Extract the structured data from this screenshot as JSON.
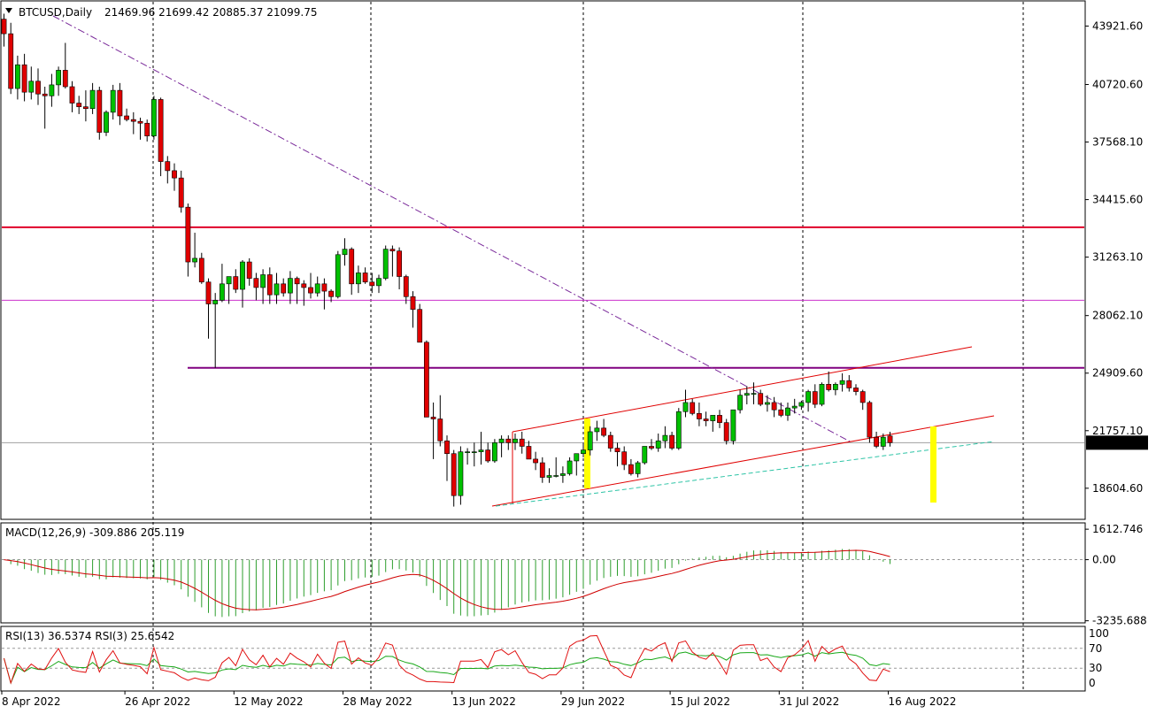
{
  "chart_data": {
    "type": "candlestick",
    "symbol_label": "BTCUSD,Daily",
    "ohlc_label": "21469.96 21699.42 20885.37 21099.75",
    "current_price": "21099.75",
    "price_axis": {
      "min": 16900,
      "max": 45300,
      "ticks": [
        "43921.60",
        "40720.60",
        "37568.10",
        "34415.60",
        "31263.10",
        "28062.10",
        "24909.60",
        "21757.10",
        "18604.60"
      ]
    },
    "date_axis": [
      "8 Apr 2022",
      "26 Apr 2022",
      "12 May 2022",
      "28 May 2022",
      "13 Jun 2022",
      "29 Jun 2022",
      "15 Jul 2022",
      "31 Jul 2022",
      "16 Aug 2022"
    ],
    "date_axis_bar_index": [
      0,
      18,
      34,
      50,
      66,
      82,
      98,
      114,
      130
    ],
    "candles": [
      [
        44300,
        44600,
        42800,
        43500
      ],
      [
        43500,
        44100,
        40200,
        40500
      ],
      [
        40500,
        42300,
        39900,
        41800
      ],
      [
        41800,
        42400,
        39800,
        40300
      ],
      [
        40300,
        41700,
        39900,
        40900
      ],
      [
        40900,
        41600,
        39600,
        40200
      ],
      [
        40200,
        40600,
        38300,
        40100
      ],
      [
        40100,
        41300,
        39500,
        40700
      ],
      [
        40700,
        41700,
        40100,
        41500
      ],
      [
        41500,
        43000,
        40500,
        40600
      ],
      [
        40600,
        40900,
        39200,
        39700
      ],
      [
        39700,
        40100,
        39100,
        39500
      ],
      [
        39500,
        40400,
        38700,
        39400
      ],
      [
        39400,
        40800,
        39100,
        40400
      ],
      [
        40400,
        40600,
        37700,
        38100
      ],
      [
        38100,
        39300,
        37900,
        39200
      ],
      [
        39200,
        40700,
        38800,
        40400
      ],
      [
        40400,
        40800,
        38500,
        39000
      ],
      [
        39000,
        39400,
        38700,
        38800
      ],
      [
        38800,
        39200,
        38000,
        38700
      ],
      [
        38700,
        38900,
        37700,
        38600
      ],
      [
        38600,
        38800,
        37600,
        37900
      ],
      [
        37900,
        40100,
        37700,
        39900
      ],
      [
        39900,
        40000,
        35700,
        36500
      ],
      [
        36500,
        36800,
        35300,
        36000
      ],
      [
        36000,
        36400,
        34900,
        35600
      ],
      [
        35600,
        36000,
        33700,
        34000
      ],
      [
        34000,
        34200,
        30200,
        31000
      ],
      [
        31000,
        32600,
        30700,
        31200
      ],
      [
        31200,
        31500,
        29800,
        29900
      ],
      [
        29900,
        30100,
        26800,
        28700
      ],
      [
        28700,
        29300,
        25200,
        28900
      ],
      [
        28900,
        30900,
        28800,
        29800
      ],
      [
        29800,
        30200,
        28700,
        30200
      ],
      [
        30200,
        30600,
        29300,
        29500
      ],
      [
        29500,
        31100,
        28500,
        31000
      ],
      [
        31000,
        31200,
        29700,
        30100
      ],
      [
        30100,
        30400,
        28900,
        29600
      ],
      [
        29600,
        30600,
        28700,
        30300
      ],
      [
        30300,
        30700,
        28700,
        29200
      ],
      [
        29200,
        30400,
        28700,
        29800
      ],
      [
        29800,
        30100,
        29100,
        29300
      ],
      [
        29300,
        30500,
        28700,
        30100
      ],
      [
        30100,
        30200,
        28700,
        29800
      ],
      [
        29800,
        30000,
        28600,
        29600
      ],
      [
        29600,
        30400,
        29000,
        29300
      ],
      [
        29300,
        30200,
        29100,
        29800
      ],
      [
        29800,
        30100,
        28400,
        29400
      ],
      [
        29400,
        29500,
        28800,
        29100
      ],
      [
        29100,
        31600,
        29000,
        31400
      ],
      [
        31400,
        32300,
        30800,
        31700
      ],
      [
        31700,
        31800,
        29200,
        29800
      ],
      [
        29800,
        30800,
        29300,
        30400
      ],
      [
        30400,
        30700,
        29800,
        29900
      ],
      [
        29900,
        30400,
        29300,
        29700
      ],
      [
        29700,
        30300,
        29300,
        30100
      ],
      [
        30100,
        31900,
        30000,
        31700
      ],
      [
        31700,
        31900,
        30200,
        31600
      ],
      [
        31600,
        31800,
        29500,
        30200
      ],
      [
        30200,
        30300,
        28700,
        29100
      ],
      [
        29100,
        29400,
        27400,
        28400
      ],
      [
        28400,
        28700,
        26700,
        26600
      ],
      [
        26600,
        26700,
        22700,
        22500
      ],
      [
        22500,
        23300,
        20200,
        22400
      ],
      [
        22400,
        23700,
        20900,
        21200
      ],
      [
        21200,
        21500,
        19000,
        20500
      ],
      [
        20500,
        20700,
        17600,
        18200
      ],
      [
        18200,
        20900,
        17700,
        20600
      ],
      [
        20600,
        20800,
        19900,
        20600
      ],
      [
        20600,
        21100,
        19800,
        20600
      ],
      [
        20600,
        21700,
        19900,
        20700
      ],
      [
        20700,
        21100,
        20000,
        20100
      ],
      [
        20100,
        21300,
        20000,
        21100
      ],
      [
        21100,
        21500,
        20300,
        21300
      ],
      [
        21300,
        21500,
        20700,
        21100
      ],
      [
        21100,
        21600,
        20700,
        21300
      ],
      [
        21300,
        21700,
        20500,
        20900
      ],
      [
        20900,
        21200,
        20300,
        20200
      ],
      [
        20200,
        20600,
        19600,
        20000
      ],
      [
        20000,
        20300,
        18900,
        19200
      ],
      [
        19200,
        19700,
        18900,
        19300
      ],
      [
        19300,
        20300,
        19200,
        19300
      ],
      [
        19300,
        19800,
        18900,
        19400
      ],
      [
        19400,
        20300,
        19300,
        20100
      ],
      [
        20100,
        20500,
        19300,
        20500
      ],
      [
        20500,
        21100,
        20300,
        20700
      ],
      [
        20700,
        22000,
        20400,
        21700
      ],
      [
        21700,
        22300,
        21200,
        21900
      ],
      [
        21900,
        22400,
        21400,
        21500
      ],
      [
        21500,
        21700,
        20600,
        20800
      ],
      [
        20800,
        21100,
        19800,
        20600
      ],
      [
        20600,
        20900,
        19600,
        19900
      ],
      [
        19900,
        20200,
        19300,
        19400
      ],
      [
        19400,
        20100,
        19200,
        20000
      ],
      [
        20000,
        20900,
        19900,
        20900
      ],
      [
        20900,
        21300,
        20700,
        20800
      ],
      [
        20800,
        21600,
        20600,
        21200
      ],
      [
        21200,
        22000,
        20800,
        21500
      ],
      [
        21500,
        21700,
        20700,
        20800
      ],
      [
        20800,
        23000,
        20700,
        22800
      ],
      [
        22800,
        24000,
        22500,
        23300
      ],
      [
        23300,
        23500,
        22600,
        22700
      ],
      [
        22700,
        23300,
        22000,
        22400
      ],
      [
        22400,
        22800,
        22000,
        22300
      ],
      [
        22300,
        22500,
        21700,
        22600
      ],
      [
        22600,
        22900,
        21900,
        22200
      ],
      [
        22200,
        22400,
        21000,
        21200
      ],
      [
        21200,
        22900,
        21000,
        22900
      ],
      [
        22900,
        24000,
        22700,
        23700
      ],
      [
        23700,
        24200,
        23200,
        23800
      ],
      [
        23800,
        24400,
        23200,
        23800
      ],
      [
        23800,
        24000,
        23100,
        23200
      ],
      [
        23200,
        23700,
        22800,
        23300
      ],
      [
        23300,
        23600,
        22500,
        22900
      ],
      [
        22900,
        23300,
        22500,
        22600
      ],
      [
        22600,
        23300,
        22300,
        23000
      ],
      [
        23000,
        23500,
        22700,
        23100
      ],
      [
        23100,
        23400,
        22900,
        23300
      ],
      [
        23300,
        24000,
        22800,
        23900
      ],
      [
        23900,
        24300,
        23000,
        23200
      ],
      [
        23200,
        24400,
        23100,
        24300
      ],
      [
        24300,
        25000,
        23900,
        24000
      ],
      [
        24000,
        24400,
        23700,
        24300
      ],
      [
        24300,
        24900,
        23900,
        24500
      ],
      [
        24500,
        24800,
        23900,
        24100
      ],
      [
        24100,
        24300,
        23700,
        23900
      ],
      [
        23900,
        24000,
        22900,
        23300
      ],
      [
        23300,
        23400,
        21100,
        21400
      ],
      [
        21400,
        21700,
        20800,
        20900
      ],
      [
        20900,
        21600,
        20700,
        21400
      ],
      [
        21469.96,
        21699.42,
        20885.37,
        21099.75
      ]
    ],
    "lines": {
      "resistance_upper": {
        "price": 32900,
        "color": "#e0002a"
      },
      "resistance_mid": {
        "price": 28900,
        "color": "#cc33cc"
      },
      "support_purple": {
        "price": 25200,
        "color": "#800080"
      },
      "current_price_line": {
        "price": 21099.75,
        "color": "#a0a0a0"
      }
    },
    "macd": {
      "label": "MACD(12,26,9) -309.886 205.119",
      "scale_top": "1612.746",
      "scale_zero": "0.00",
      "scale_bottom": "-3235.688",
      "min": -3300,
      "max": 1900
    },
    "rsi": {
      "label": "RSI(13) 36.5374  RSI(3) 25.6542",
      "levels": [
        "100",
        "70",
        "30",
        "0"
      ]
    },
    "colors": {
      "bull": "#00c000",
      "bear": "#e00000",
      "signal": "#d00000",
      "hist": "#2e9e2e",
      "rsi_long": "#18a818",
      "rsi_short": "#e01010"
    }
  }
}
